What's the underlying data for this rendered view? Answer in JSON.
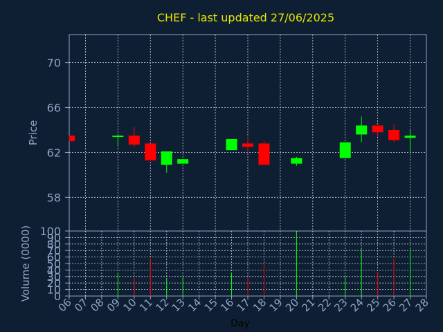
{
  "colors": {
    "background": "#0f1f33",
    "axis": "#8fa6c4",
    "grid": "#c8d0dc",
    "title": "#e6e600",
    "up": "#00ff00",
    "down": "#ff0000"
  },
  "chart_data": [
    {
      "type": "candlestick",
      "title": "CHEF - last updated 27/06/2025",
      "ylabel": "Price",
      "ylim": [
        55,
        72.5
      ],
      "yticks": [
        "58",
        "62",
        "66",
        "70"
      ],
      "grid": true,
      "candles": [
        {
          "day": "06",
          "open": 63.5,
          "close": 63.0,
          "high": 63.5,
          "low": 63.0
        },
        {
          "day": "09",
          "open": 63.4,
          "close": 63.5,
          "high": 63.5,
          "low": 62.5
        },
        {
          "day": "10",
          "open": 63.5,
          "close": 62.7,
          "high": 64.3,
          "low": 62.5
        },
        {
          "day": "11",
          "open": 62.8,
          "close": 61.3,
          "high": 62.8,
          "low": 61.3
        },
        {
          "day": "12",
          "open": 60.9,
          "close": 62.1,
          "high": 62.1,
          "low": 60.2
        },
        {
          "day": "13",
          "open": 61.0,
          "close": 61.4,
          "high": 61.4,
          "low": 61.0
        },
        {
          "day": "16",
          "open": 62.2,
          "close": 63.2,
          "high": 63.2,
          "low": 62.2
        },
        {
          "day": "17",
          "open": 62.8,
          "close": 62.5,
          "high": 63.4,
          "low": 62.0
        },
        {
          "day": "18",
          "open": 62.8,
          "close": 60.9,
          "high": 63.0,
          "low": 60.9
        },
        {
          "day": "20",
          "open": 61.0,
          "close": 61.5,
          "high": 61.6,
          "low": 60.8
        },
        {
          "day": "23",
          "open": 61.5,
          "close": 62.9,
          "high": 62.9,
          "low": 61.5
        },
        {
          "day": "24",
          "open": 63.6,
          "close": 64.4,
          "high": 65.2,
          "low": 62.9
        },
        {
          "day": "25",
          "open": 64.4,
          "close": 63.8,
          "high": 64.4,
          "low": 63.4
        },
        {
          "day": "26",
          "open": 64.0,
          "close": 63.1,
          "high": 64.5,
          "low": 62.9
        },
        {
          "day": "27",
          "open": 63.3,
          "close": 63.5,
          "high": 64.0,
          "low": 62.0
        }
      ]
    },
    {
      "type": "bar",
      "ylabel": "Volume (0000)",
      "xlabel": "Day",
      "ylim": [
        0,
        100
      ],
      "yticks": [
        "0",
        "10",
        "20",
        "30",
        "40",
        "50",
        "60",
        "70",
        "80",
        "90",
        "100"
      ],
      "categories": [
        "06",
        "07",
        "08",
        "09",
        "10",
        "11",
        "12",
        "13",
        "14",
        "15",
        "16",
        "17",
        "18",
        "19",
        "20",
        "21",
        "22",
        "23",
        "24",
        "25",
        "26",
        "27",
        "28"
      ],
      "grid": true,
      "bars": [
        {
          "day": "09",
          "value": 36,
          "direction": "up"
        },
        {
          "day": "10",
          "value": 28,
          "direction": "down"
        },
        {
          "day": "11",
          "value": 57,
          "direction": "down"
        },
        {
          "day": "12",
          "value": 26,
          "direction": "up"
        },
        {
          "day": "13",
          "value": 29,
          "direction": "up"
        },
        {
          "day": "16",
          "value": 36,
          "direction": "up"
        },
        {
          "day": "17",
          "value": 28,
          "direction": "down"
        },
        {
          "day": "18",
          "value": 50,
          "direction": "down"
        },
        {
          "day": "20",
          "value": 99,
          "direction": "up"
        },
        {
          "day": "23",
          "value": 29,
          "direction": "up"
        },
        {
          "day": "24",
          "value": 72,
          "direction": "up"
        },
        {
          "day": "25",
          "value": 37,
          "direction": "down"
        },
        {
          "day": "26",
          "value": 57,
          "direction": "down"
        },
        {
          "day": "27",
          "value": 72,
          "direction": "up"
        }
      ]
    }
  ]
}
